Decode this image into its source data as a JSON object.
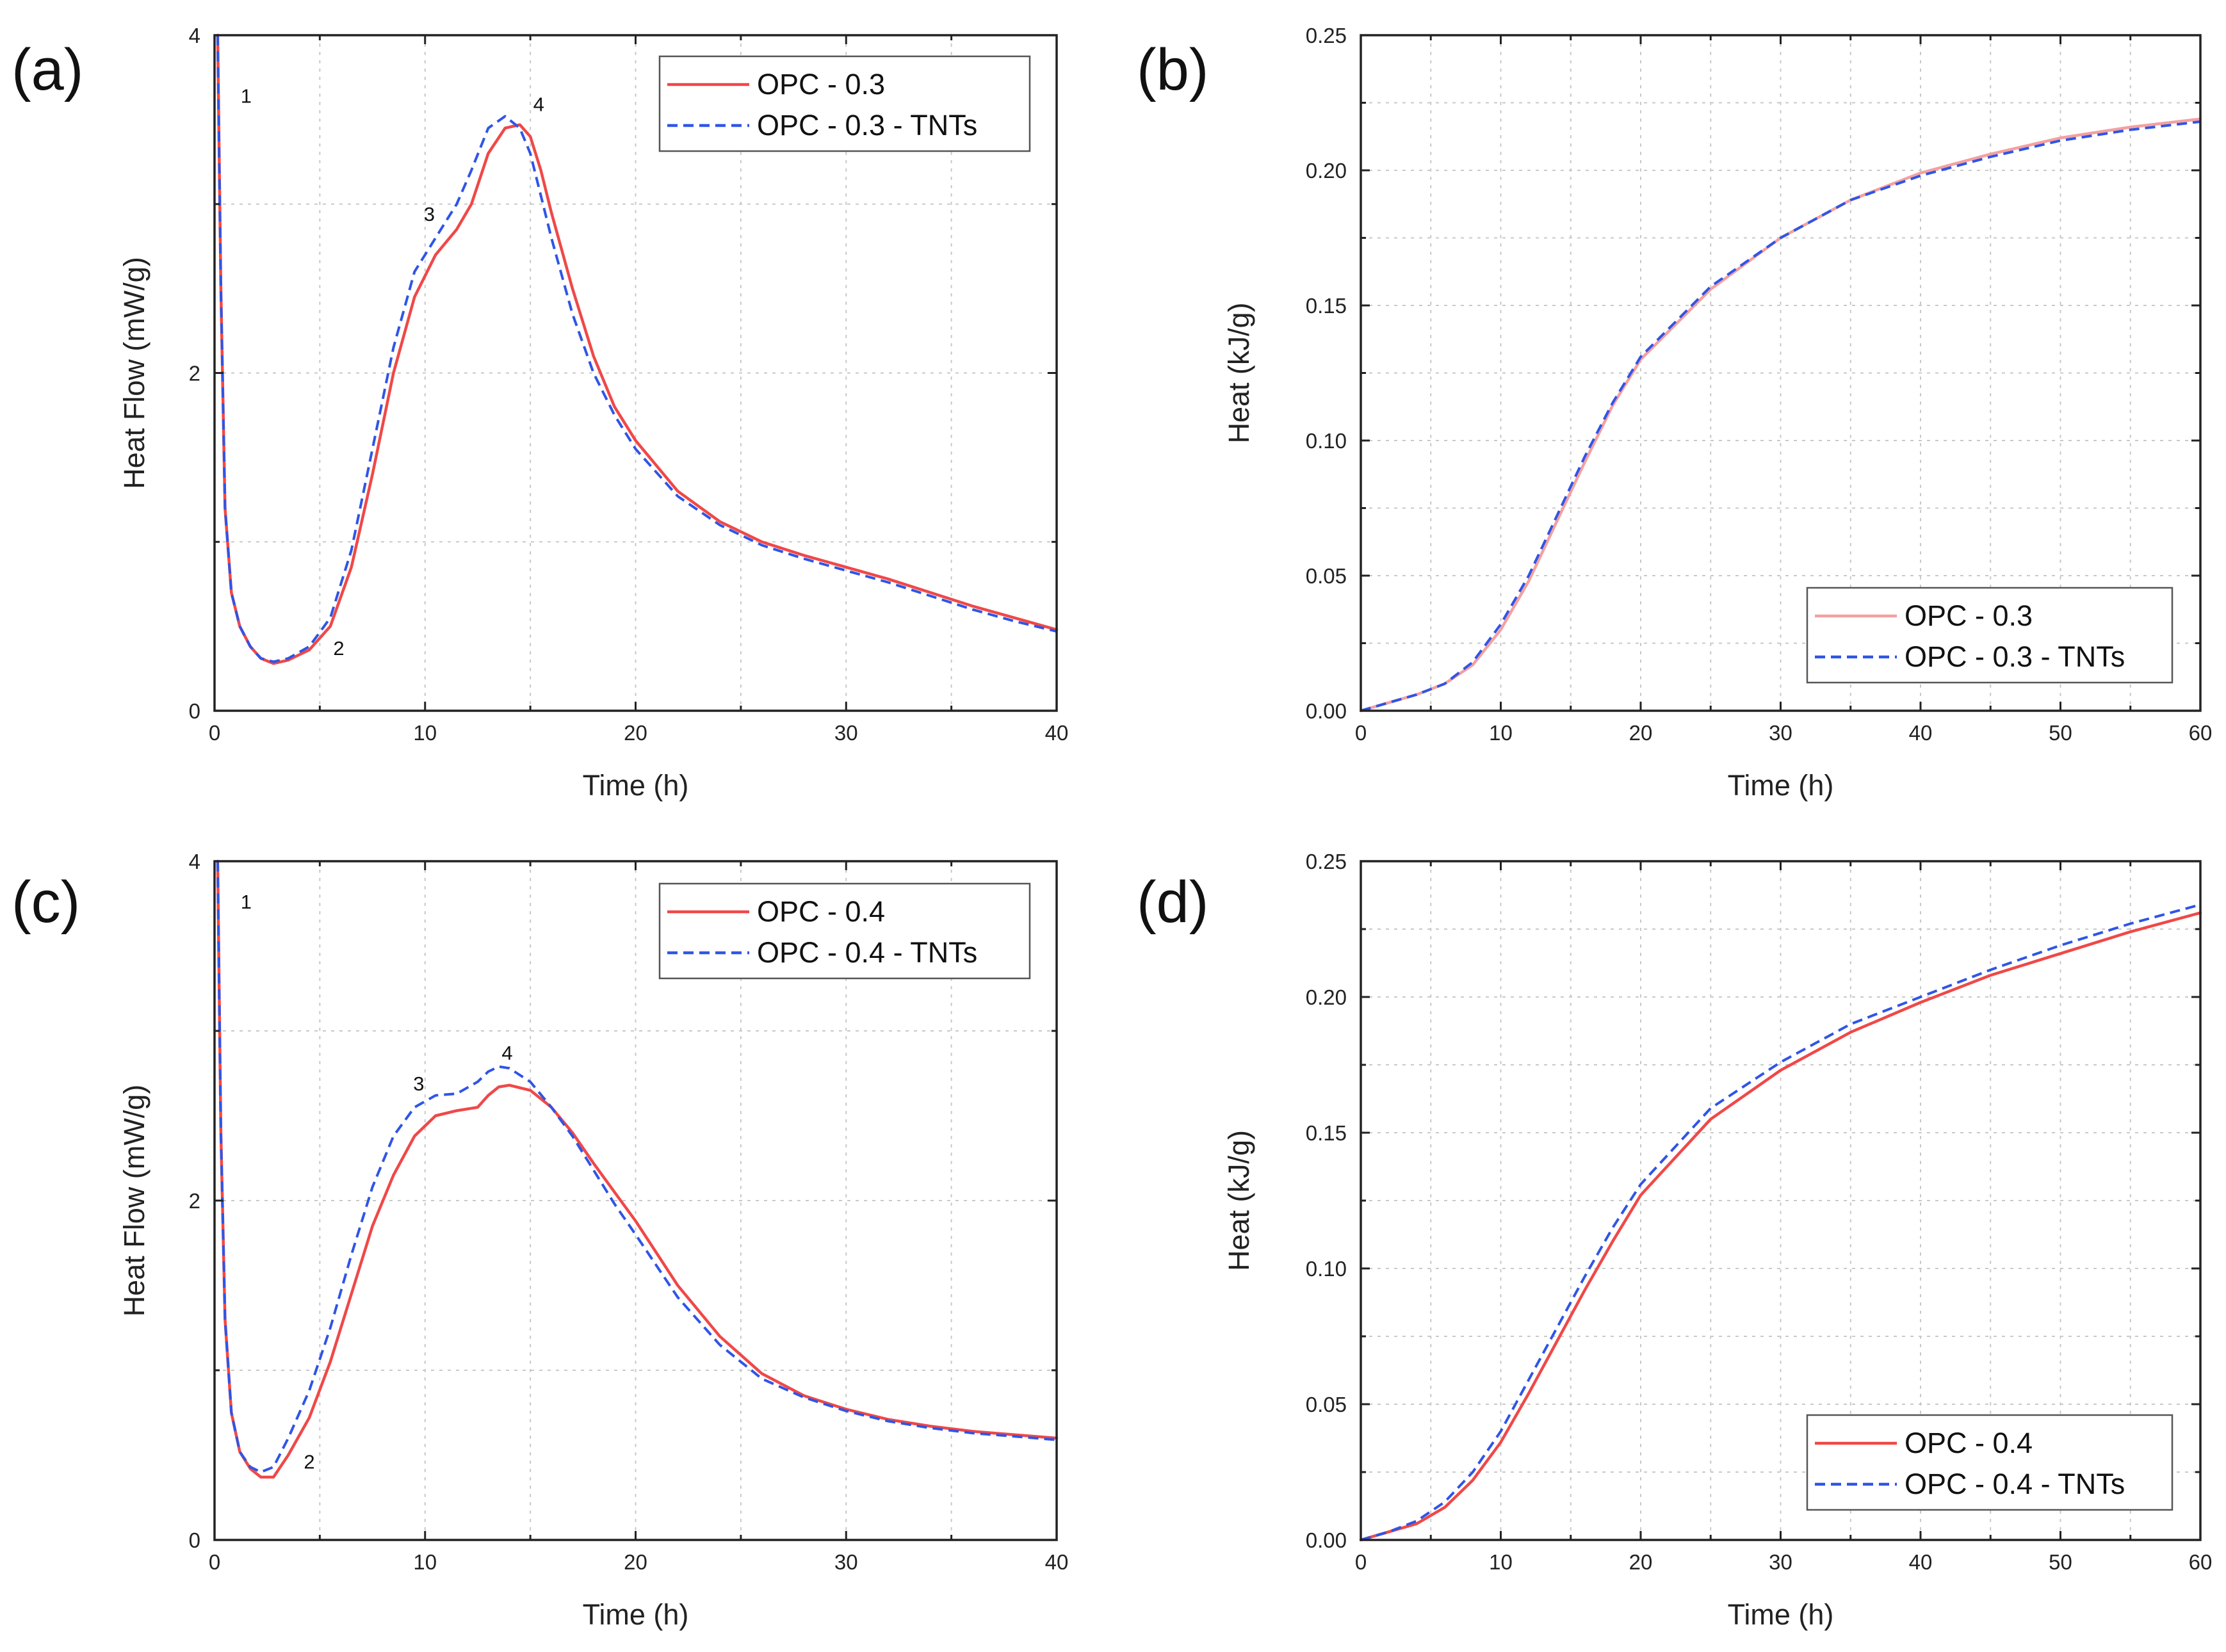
{
  "figure": {
    "colors": {
      "red": "#f04848",
      "red_light": "#f4a0a0",
      "blue": "#2f55e6"
    },
    "panels": [
      {
        "label": "(a)"
      },
      {
        "label": "(b)"
      },
      {
        "label": "(c)"
      },
      {
        "label": "(d)"
      }
    ]
  },
  "chart_data": [
    {
      "id": "a",
      "type": "line",
      "xlabel": "Time (h)",
      "ylabel": "Heat Flow (mW/g)",
      "xlim": [
        0,
        40
      ],
      "ylim": [
        0,
        4
      ],
      "xticks": [
        0,
        10,
        20,
        30,
        40
      ],
      "yticks": [
        0,
        2,
        4
      ],
      "ytick_labels": [
        "0",
        "2",
        "4"
      ],
      "grid": true,
      "legend_position": "top-right",
      "series": [
        {
          "name": "OPC - 0.3",
          "style": "solid",
          "color": "#f04848",
          "x": [
            0.15,
            0.3,
            0.5,
            0.8,
            1.2,
            1.7,
            2.2,
            2.8,
            3.5,
            4.5,
            5.5,
            6.5,
            7.5,
            8.5,
            9.5,
            10.5,
            11.5,
            12.2,
            13,
            13.8,
            14.5,
            15,
            15.5,
            16,
            17,
            18,
            19,
            20,
            22,
            24,
            26,
            28,
            30,
            32,
            34,
            36,
            38,
            40
          ],
          "y": [
            4.0,
            2.5,
            1.2,
            0.7,
            0.5,
            0.38,
            0.31,
            0.28,
            0.3,
            0.36,
            0.5,
            0.85,
            1.4,
            2.0,
            2.45,
            2.7,
            2.85,
            3.0,
            3.3,
            3.45,
            3.47,
            3.4,
            3.2,
            2.95,
            2.5,
            2.1,
            1.8,
            1.6,
            1.3,
            1.12,
            1.0,
            0.92,
            0.85,
            0.78,
            0.7,
            0.62,
            0.55,
            0.48
          ]
        },
        {
          "name": "OPC - 0.3 - TNTs",
          "style": "dashed",
          "color": "#2f55e6",
          "x": [
            0.15,
            0.3,
            0.5,
            0.8,
            1.2,
            1.7,
            2.2,
            2.8,
            3.5,
            4.5,
            5.5,
            6.5,
            7.5,
            8.5,
            9.5,
            10.5,
            11.5,
            12.2,
            13,
            13.8,
            14.5,
            15,
            15.5,
            16,
            17,
            18,
            19,
            20,
            22,
            24,
            26,
            28,
            30,
            32,
            34,
            36,
            38,
            40
          ],
          "y": [
            4.0,
            2.5,
            1.2,
            0.7,
            0.5,
            0.38,
            0.31,
            0.29,
            0.31,
            0.38,
            0.55,
            0.95,
            1.55,
            2.15,
            2.6,
            2.8,
            3.0,
            3.2,
            3.45,
            3.52,
            3.45,
            3.3,
            3.05,
            2.8,
            2.35,
            2.0,
            1.75,
            1.55,
            1.27,
            1.1,
            0.98,
            0.9,
            0.83,
            0.76,
            0.68,
            0.6,
            0.53,
            0.47
          ]
        }
      ],
      "annotations": [
        {
          "text": "1",
          "x": 1.5,
          "y": 3.6
        },
        {
          "text": "2",
          "x": 5.9,
          "y": 0.33
        },
        {
          "text": "3",
          "x": 10.2,
          "y": 2.9
        },
        {
          "text": "4",
          "x": 15.4,
          "y": 3.55
        }
      ]
    },
    {
      "id": "b",
      "type": "line",
      "xlabel": "Time (h)",
      "ylabel": "Heat  (kJ/g)",
      "xlim": [
        0,
        60
      ],
      "ylim": [
        0,
        0.25
      ],
      "xticks": [
        0,
        10,
        20,
        30,
        40,
        50,
        60
      ],
      "yticks": [
        0,
        0.05,
        0.1,
        0.15,
        0.2,
        0.25
      ],
      "ytick_labels": [
        "0.00",
        "0.05",
        "0.10",
        "0.15",
        "0.20",
        "0.25"
      ],
      "grid": true,
      "legend_position": "bottom-right",
      "series": [
        {
          "name": "OPC - 0.3",
          "style": "solid",
          "color": "#f4a0a0",
          "x": [
            0,
            2,
            4,
            6,
            8,
            10,
            12,
            14,
            16,
            18,
            20,
            25,
            30,
            35,
            40,
            45,
            50,
            55,
            60
          ],
          "y": [
            0,
            0.003,
            0.006,
            0.01,
            0.017,
            0.03,
            0.048,
            0.07,
            0.092,
            0.113,
            0.13,
            0.156,
            0.175,
            0.189,
            0.199,
            0.206,
            0.212,
            0.216,
            0.219
          ]
        },
        {
          "name": "OPC - 0.3 - TNTs",
          "style": "dashed",
          "color": "#2f55e6",
          "x": [
            0,
            2,
            4,
            6,
            8,
            10,
            12,
            14,
            16,
            18,
            20,
            25,
            30,
            35,
            40,
            45,
            50,
            55,
            60
          ],
          "y": [
            0,
            0.003,
            0.006,
            0.01,
            0.018,
            0.032,
            0.05,
            0.072,
            0.094,
            0.114,
            0.131,
            0.157,
            0.175,
            0.189,
            0.198,
            0.205,
            0.211,
            0.215,
            0.218
          ]
        }
      ]
    },
    {
      "id": "c",
      "type": "line",
      "xlabel": "Time (h)",
      "ylabel": "Heat Flow (mW/g)",
      "xlim": [
        0,
        40
      ],
      "ylim": [
        0,
        4
      ],
      "xticks": [
        0,
        10,
        20,
        30,
        40
      ],
      "yticks": [
        0,
        2,
        4
      ],
      "ytick_labels": [
        "0",
        "2",
        "4"
      ],
      "grid": true,
      "legend_position": "top-right",
      "series": [
        {
          "name": "OPC - 0.4",
          "style": "solid",
          "color": "#f04848",
          "x": [
            0.15,
            0.3,
            0.5,
            0.8,
            1.2,
            1.7,
            2.2,
            2.8,
            3.5,
            4.5,
            5.5,
            6.5,
            7.5,
            8.5,
            9.5,
            10.5,
            11.5,
            12.5,
            13,
            13.5,
            14,
            15,
            16,
            17,
            18,
            19,
            20,
            22,
            24,
            26,
            28,
            30,
            32,
            34,
            36,
            38,
            40
          ],
          "y": [
            4.0,
            2.4,
            1.3,
            0.75,
            0.52,
            0.42,
            0.37,
            0.37,
            0.5,
            0.72,
            1.05,
            1.45,
            1.85,
            2.15,
            2.38,
            2.5,
            2.53,
            2.55,
            2.62,
            2.67,
            2.68,
            2.65,
            2.55,
            2.4,
            2.22,
            2.05,
            1.88,
            1.5,
            1.2,
            0.98,
            0.85,
            0.77,
            0.71,
            0.67,
            0.64,
            0.62,
            0.6
          ]
        },
        {
          "name": "OPC - 0.4 - TNTs",
          "style": "dashed",
          "color": "#2f55e6",
          "x": [
            0.15,
            0.3,
            0.5,
            0.8,
            1.2,
            1.7,
            2.2,
            2.8,
            3.5,
            4.5,
            5.5,
            6.5,
            7.5,
            8.5,
            9.5,
            10.5,
            11.5,
            12.5,
            13,
            13.5,
            14,
            15,
            16,
            17,
            18,
            19,
            20,
            22,
            24,
            26,
            28,
            30,
            32,
            34,
            36,
            38,
            40
          ],
          "y": [
            4.0,
            2.4,
            1.3,
            0.75,
            0.52,
            0.43,
            0.4,
            0.43,
            0.6,
            0.88,
            1.25,
            1.68,
            2.08,
            2.38,
            2.55,
            2.62,
            2.63,
            2.7,
            2.76,
            2.79,
            2.78,
            2.7,
            2.55,
            2.38,
            2.18,
            1.98,
            1.8,
            1.43,
            1.15,
            0.95,
            0.84,
            0.76,
            0.7,
            0.66,
            0.63,
            0.61,
            0.59
          ]
        }
      ],
      "annotations": [
        {
          "text": "1",
          "x": 1.5,
          "y": 3.72
        },
        {
          "text": "2",
          "x": 4.5,
          "y": 0.42
        },
        {
          "text": "3",
          "x": 9.7,
          "y": 2.65
        },
        {
          "text": "4",
          "x": 13.9,
          "y": 2.83
        }
      ]
    },
    {
      "id": "d",
      "type": "line",
      "xlabel": "Time (h)",
      "ylabel": "Heat  (kJ/g)",
      "xlim": [
        0,
        60
      ],
      "ylim": [
        0,
        0.25
      ],
      "xticks": [
        0,
        10,
        20,
        30,
        40,
        50,
        60
      ],
      "yticks": [
        0,
        0.05,
        0.1,
        0.15,
        0.2,
        0.25
      ],
      "ytick_labels": [
        "0.00",
        "0.05",
        "0.10",
        "0.15",
        "0.20",
        "0.25"
      ],
      "grid": true,
      "legend_position": "bottom-right",
      "series": [
        {
          "name": "OPC - 0.4",
          "style": "solid",
          "color": "#f04848",
          "x": [
            0,
            2,
            4,
            6,
            8,
            10,
            12,
            14,
            16,
            18,
            20,
            25,
            30,
            35,
            40,
            45,
            50,
            55,
            60
          ],
          "y": [
            0,
            0.003,
            0.006,
            0.012,
            0.022,
            0.036,
            0.054,
            0.073,
            0.092,
            0.11,
            0.127,
            0.155,
            0.173,
            0.187,
            0.198,
            0.208,
            0.216,
            0.224,
            0.231
          ]
        },
        {
          "name": "OPC - 0.4 - TNTs",
          "style": "dashed",
          "color": "#2f55e6",
          "x": [
            0,
            2,
            4,
            6,
            8,
            10,
            12,
            14,
            16,
            18,
            20,
            25,
            30,
            35,
            40,
            45,
            50,
            55,
            60
          ],
          "y": [
            0,
            0.003,
            0.007,
            0.014,
            0.025,
            0.04,
            0.059,
            0.078,
            0.097,
            0.115,
            0.131,
            0.159,
            0.176,
            0.19,
            0.2,
            0.21,
            0.219,
            0.227,
            0.234
          ]
        }
      ]
    }
  ]
}
